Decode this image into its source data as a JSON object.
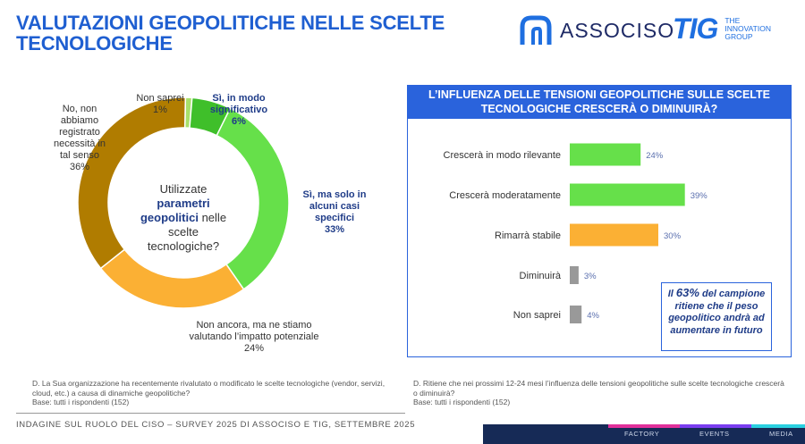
{
  "header": {
    "title": "VALUTAZIONI GEOPOLITICHE NELLE SCELTE TECNOLOGICHE",
    "logo_associso": "ASSOCISO",
    "logo_tig_mark": "TIG",
    "logo_tig_sub": "THE\nINNOVATION\nGROUP"
  },
  "left_chart": {
    "center_question_parts": [
      "Utilizzate",
      "parametri geopolitici",
      "nelle scelte tecnologiche?"
    ],
    "labels": {
      "non_saprei": "Non saprei\n1%",
      "si_significativo": "Sì, in modo\nsignificativo\n6%",
      "si_alcuni": "Sì, ma solo in\nalcuni casi\nspecifici\n33%",
      "non_ancora": "Non ancora, ma ne stiamo\nvalutando l’impatto potenziale\n24%",
      "no": "No, non\nabbiamo\nregistrato\nnecessità in\ntal senso\n36%"
    },
    "note": "D. La Sua organizzazione ha recentemente rivalutato o modificato le scelte tecnologiche (vendor, servizi, cloud, etc.) a causa di dinamiche geopolitiche?\nBase: tutti i rispondenti (152)"
  },
  "right_chart": {
    "heading": "L’INFLUENZA DELLE TENSIONI GEOPOLITICHE SULLE SCELTE TECNOLOGICHE CRESCERÀ O DIMINUIRÀ?",
    "callout_pre": "Il ",
    "callout_pct": "63%",
    "callout_post": " del campione ritiene che il peso geopolitico andrà ad aumentare in futuro",
    "note": "D. Ritiene che nei prossimi 12-24 mesi l’influenza delle tensioni geopolitiche sulle scelte tecnologiche crescerà o diminuirà?\nBase: tutti i rispondenti (152)"
  },
  "footer": {
    "text": "INDAGINE SUL RUOLO DEL CISO – SURVEY 2025 DI ASSOCISO E TIG, SETTEMBRE 2025",
    "tabs": [
      "FACTORY",
      "EVENTS",
      "MEDIA"
    ]
  },
  "chart_data": [
    {
      "type": "pie",
      "categories": [
        "Non saprei",
        "Sì, in modo significativo",
        "Sì, ma solo in alcuni casi specifici",
        "Non ancora, ma ne stiamo valutando l’impatto potenziale",
        "No, non abbiamo registrato necessità in tal senso"
      ],
      "values": [
        1,
        6,
        33,
        24,
        36
      ],
      "colors": [
        "#a8e06a",
        "#3fbf2a",
        "#66e04a",
        "#fbb034",
        "#b07c00"
      ]
    },
    {
      "type": "bar",
      "orientation": "horizontal",
      "categories": [
        "Crescerà in modo rilevante",
        "Crescerà moderatamente",
        "Rimarrà stabile",
        "Diminuirà",
        "Non saprei"
      ],
      "values": [
        24,
        39,
        30,
        3,
        4
      ],
      "value_labels": [
        "24%",
        "39%",
        "30%",
        "3%",
        "4%"
      ],
      "colors": [
        "#66e04a",
        "#66e04a",
        "#fbb034",
        "#999999",
        "#999999"
      ]
    }
  ]
}
